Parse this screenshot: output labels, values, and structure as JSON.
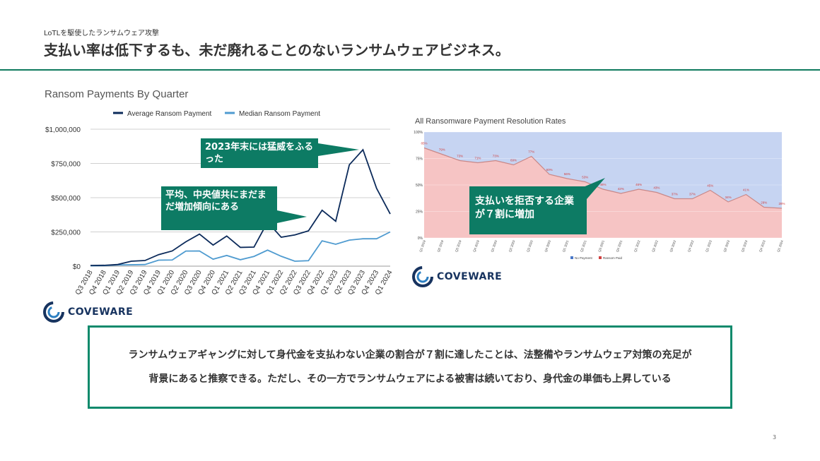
{
  "header": {
    "subtitle": "LoTLを駆使したランサムウェア攻撃",
    "title": "支払い率は低下するも、未だ廃れることのないランサムウェアビジネス。"
  },
  "brand": {
    "accent": "#0f7a5e",
    "logo_text": "COVEWARE",
    "logo_color": "#17335f"
  },
  "callouts": {
    "peak": "2023年末には猛威をふるった",
    "increase": "平均、中央値共にまだまだ増加傾向にある",
    "refuse": "支払いを拒否する企業が７割に増加"
  },
  "summary": {
    "line1": "ランサムウェアギャングに対して身代金を支払わない企業の割合が７割に達したことは、法整備やランサムウェア対策の充足が",
    "line2": "背景にあると推察できる。ただし、その一方でランサムウェアによる被害は続いており、身代金の単価も上昇している"
  },
  "page_number": "3",
  "chart_data": [
    {
      "type": "line",
      "title": "Ransom Payments By Quarter",
      "categories": [
        "Q3 2018",
        "Q4 2018",
        "Q1 2019",
        "Q2 2019",
        "Q3 2019",
        "Q4 2019",
        "Q1 2020",
        "Q2 2020",
        "Q3 2020",
        "Q4 2020",
        "Q1 2021",
        "Q2 2021",
        "Q3 2021",
        "Q4 2021",
        "Q1 2022",
        "Q2 2022",
        "Q3 2022",
        "Q4 2022",
        "Q1 2023",
        "Q2 2023",
        "Q3 2023",
        "Q4 2023",
        "Q1 2024"
      ],
      "series": [
        {
          "name": "Average Ransom Payment",
          "color": "#0b2a5a",
          "values": [
            5000,
            6000,
            12000,
            36000,
            41000,
            84000,
            111000,
            178000,
            234000,
            154000,
            220000,
            137000,
            139000,
            322000,
            211000,
            228000,
            258000,
            408000,
            328000,
            740000,
            850000,
            568000,
            381000
          ]
        },
        {
          "name": "Median Ransom Payment",
          "color": "#4f9bd0",
          "values": [
            3000,
            4000,
            9000,
            10000,
            12000,
            44000,
            45000,
            110000,
            111000,
            51000,
            78000,
            47000,
            71000,
            117000,
            72000,
            36000,
            40000,
            185000,
            160000,
            190000,
            200000,
            200000,
            250000
          ]
        }
      ],
      "yticks": [
        "$0",
        "$250,000",
        "$500,000",
        "$750,000",
        "$1,000,000"
      ],
      "ylim": [
        0,
        1000000
      ],
      "legend": "top"
    },
    {
      "type": "area",
      "title": "All Ransomware Payment Resolution Rates",
      "categories": [
        "Q1 2019",
        "Q2 2019",
        "Q3 2019",
        "Q4 2019",
        "Q1 2020",
        "Q2 2020",
        "Q3 2020",
        "Q4 2020",
        "Q1 2021",
        "Q2 2021",
        "Q3 2021",
        "Q4 2021",
        "Q1 2022",
        "Q2 2022",
        "Q3 2022",
        "Q4 2022",
        "Q1 2023",
        "Q2 2023",
        "Q3 2023",
        "Q4 2023",
        "Q1 2024"
      ],
      "series": [
        {
          "name": "No Payment",
          "color": "#c6d4f2",
          "values": [
            15,
            21,
            27,
            29,
            27,
            31,
            23,
            40,
            44,
            47,
            54,
            58,
            54,
            57,
            63,
            63,
            55,
            66,
            59,
            71,
            72
          ]
        },
        {
          "name": "Ransom Paid",
          "color": "#f6c4c4",
          "values": [
            85,
            79,
            73,
            71,
            73,
            69,
            77,
            60,
            56,
            53,
            46,
            42,
            46,
            43,
            37,
            37,
            45,
            34,
            41,
            29,
            28
          ]
        }
      ],
      "point_labels": [
        "85%",
        "79%",
        "73%",
        "71%",
        "73%",
        "69%",
        "77%",
        "60%",
        "56%",
        "53%",
        "46%",
        "42%",
        "46%",
        "43%",
        "37%",
        "37%",
        "45%",
        "34%",
        "41%",
        "29%",
        "28%"
      ],
      "yticks": [
        "0%",
        "25%",
        "50%",
        "75%",
        "100%"
      ],
      "ylim": [
        0,
        100
      ],
      "legend": "bottom"
    }
  ]
}
